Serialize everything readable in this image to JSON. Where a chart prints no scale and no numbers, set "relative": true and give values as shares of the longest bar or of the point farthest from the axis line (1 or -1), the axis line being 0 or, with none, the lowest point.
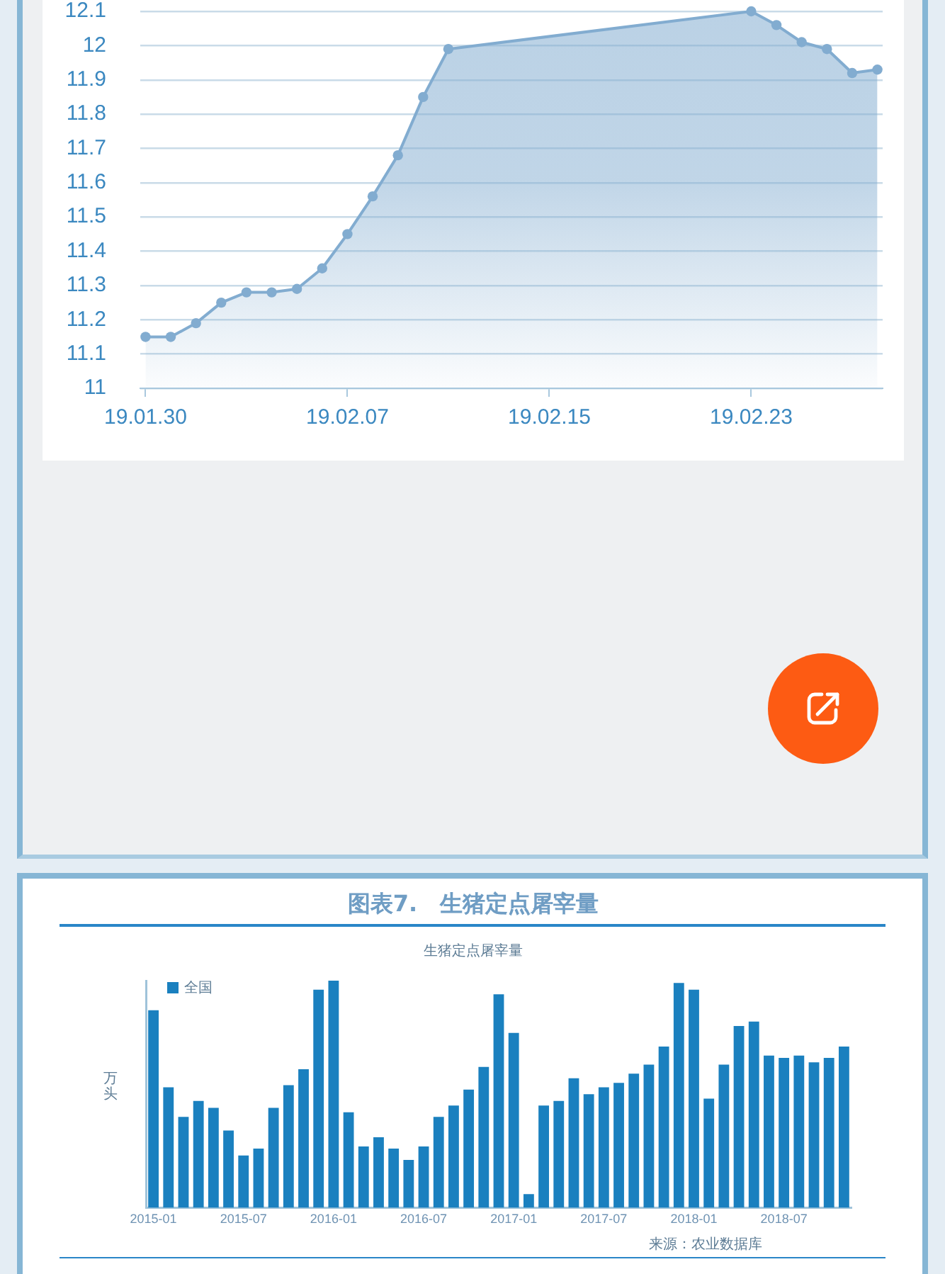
{
  "chart_data": [
    {
      "type": "area",
      "x": [
        "--01-30",
        "--01-31",
        "--02-01",
        "--02-02",
        "--02-03",
        "--02-04",
        "--02-05",
        "--02-06",
        "--02-07",
        "--02-08",
        "--02-09",
        "--02-10",
        "--02-11",
        "--02-12",
        "--02-13",
        "--02-14",
        "--02-15",
        "--02-16",
        "--02-17",
        "--02-18",
        "--02-19",
        "--02-20",
        "--02-21",
        "--02-22",
        "--02-23",
        "--02-24",
        "--02-25",
        "--02-26",
        "--02-27",
        "--02-28"
      ],
      "series": [
        {
          "color": "#82acd0",
          "values": [
            11.15,
            11.15,
            11.19,
            11.25,
            11.28,
            11.28,
            11.29,
            11.35,
            11.45,
            11.56,
            11.68,
            11.85,
            11.99,
            null,
            null,
            null,
            null,
            null,
            null,
            null,
            null,
            null,
            null,
            null,
            12.1,
            12.06,
            12.01,
            11.99,
            11.92,
            11.93
          ]
        }
      ],
      "xlim": [
        "--01-29T19:00",
        "--02-28T05:00"
      ],
      "xticks": [
        {
          "value": "--01-30",
          "label": "19.01.30"
        },
        {
          "value": "--02-07",
          "label": "19.02.07"
        },
        {
          "value": "--02-15",
          "label": "19.02.15"
        },
        {
          "value": "--02-23",
          "label": "19.02.23"
        }
      ],
      "ylim": [
        11,
        12.1
      ],
      "yticks": [
        11,
        11.1,
        11.2,
        11.3,
        11.4,
        11.5,
        11.6,
        11.7,
        11.8,
        11.9,
        12,
        12.1
      ],
      "grid": "y",
      "marker": "circle"
    },
    {
      "type": "bar",
      "title": "图表7.　生猪定点屠宰量",
      "subtitle": "生猪定点屠宰量",
      "ylabel": "万头",
      "categories": [
        "2015-01",
        null,
        null,
        null,
        null,
        null,
        "2015-07",
        null,
        null,
        null,
        null,
        null,
        "2016-01",
        null,
        null,
        null,
        null,
        null,
        "2016-07",
        null,
        null,
        null,
        null,
        null,
        "2017-01",
        null,
        null,
        null,
        null,
        null,
        "2017-07",
        null,
        null,
        null,
        null,
        null,
        "2018-01",
        null,
        null,
        null,
        null,
        null,
        "2018-07",
        null,
        null,
        null,
        null
      ],
      "series": [
        {
          "name": "全国",
          "color": "#1a80bf",
          "values": [
            0.87,
            0.53,
            0.4,
            0.47,
            0.44,
            0.34,
            0.23,
            0.26,
            0.44,
            0.54,
            0.61,
            0.96,
            1,
            0.42,
            0.27,
            0.31,
            0.26,
            0.21,
            0.27,
            0.4,
            0.45,
            0.52,
            0.62,
            0.94,
            0.77,
            0.06,
            0.45,
            0.47,
            0.57,
            0.5,
            0.53,
            0.55,
            0.59,
            0.63,
            0.71,
            0.99,
            0.96,
            0.48,
            0.63,
            0.8,
            0.82,
            0.67,
            0.66,
            0.67,
            0.64,
            0.66,
            0.71
          ]
        }
      ],
      "relative": true,
      "legend": "top left",
      "annotations": [
        "来源：农业数据库"
      ]
    }
  ]
}
